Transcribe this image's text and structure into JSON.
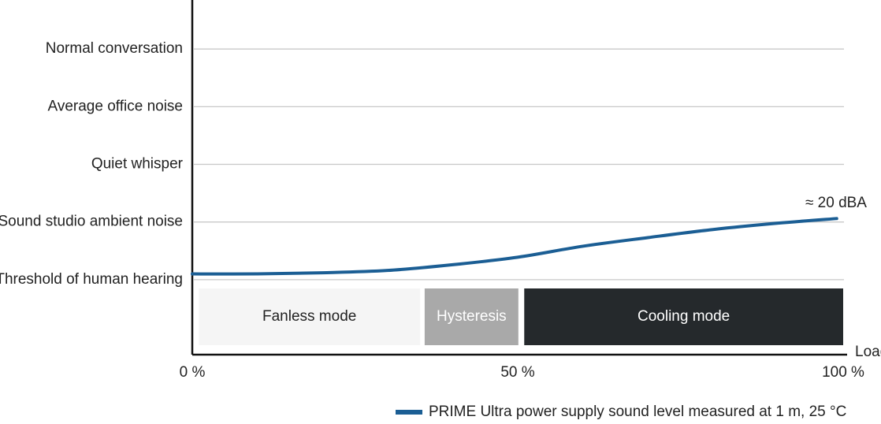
{
  "chart_data": {
    "type": "line",
    "xlabel": "Load",
    "xlim": [
      0,
      100
    ],
    "xticks": [
      {
        "value": 0,
        "label": "0 %"
      },
      {
        "value": 50,
        "label": "50 %"
      },
      {
        "value": 100,
        "label": "100 %"
      }
    ],
    "ylim": [
      -1.3,
      4.85
    ],
    "yticks": [
      {
        "value": 0,
        "label": "Threshold of human hearing"
      },
      {
        "value": 1,
        "label": "Sound studio ambient noise"
      },
      {
        "value": 2,
        "label": "Quiet whisper"
      },
      {
        "value": 3,
        "label": "Average office noise"
      },
      {
        "value": 4,
        "label": "Normal conversation"
      }
    ],
    "grid": true,
    "regions": [
      {
        "label": "Fanless mode",
        "x": [
          1,
          35
        ],
        "color": "#f5f5f5",
        "text_color": "#222222"
      },
      {
        "label": "Hysteresis",
        "x": [
          35.7,
          50.1
        ],
        "color": "#a9a9a9",
        "text_color": "#ffffff"
      },
      {
        "label": "Cooling mode",
        "x": [
          51,
          100
        ],
        "color": "#25292c",
        "text_color": "#ffffff"
      }
    ],
    "x": [
      0,
      10,
      20,
      30,
      40,
      50,
      60,
      70,
      80,
      90,
      99
    ],
    "series": [
      {
        "name": "PRIME Ultra power supply sound level measured at 1 m, 25 °C",
        "color": "#1b5e94",
        "values": [
          0.1,
          0.1,
          0.12,
          0.16,
          0.26,
          0.39,
          0.58,
          0.73,
          0.87,
          0.98,
          1.06
        ]
      }
    ],
    "annotations": [
      "≈ 20 dBA"
    ]
  }
}
